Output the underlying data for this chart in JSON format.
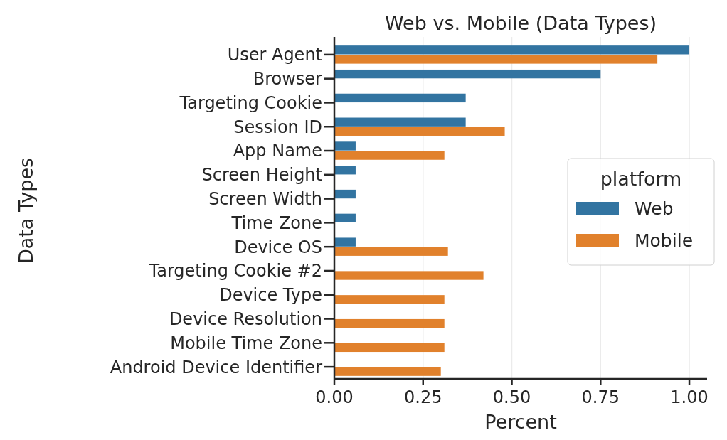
{
  "chart_data": {
    "type": "bar",
    "orientation": "horizontal",
    "title": "Web vs. Mobile (Data Types)",
    "xlabel": "Percent",
    "ylabel": "Data Types",
    "legend_title": "platform",
    "legend": "right",
    "categories": [
      "User Agent",
      "Browser",
      "Targeting Cookie",
      "Session ID",
      "App Name",
      "Screen Height",
      "Screen Width",
      "Time Zone",
      "Device OS",
      "Targeting Cookie #2",
      "Device Type",
      "Device Resolution",
      "Mobile Time Zone",
      "Android Device Identifier"
    ],
    "series": [
      {
        "name": "Web",
        "color": "#3274a1",
        "values": [
          1.0,
          0.75,
          0.37,
          0.37,
          0.06,
          0.06,
          0.06,
          0.06,
          0.06,
          null,
          null,
          null,
          null,
          null
        ]
      },
      {
        "name": "Mobile",
        "color": "#e1812c",
        "values": [
          0.91,
          null,
          null,
          0.48,
          0.31,
          null,
          null,
          null,
          0.32,
          0.42,
          0.31,
          0.31,
          0.31,
          0.3
        ]
      }
    ],
    "xlim": [
      0,
      1.05
    ],
    "xticks": [
      {
        "value": 0,
        "label": "0.00"
      },
      {
        "value": 0.25,
        "label": "0.25"
      },
      {
        "value": 0.5,
        "label": "0.50"
      },
      {
        "value": 0.75,
        "label": "0.75"
      },
      {
        "value": 1,
        "label": "1.00"
      }
    ],
    "grid": "x"
  }
}
